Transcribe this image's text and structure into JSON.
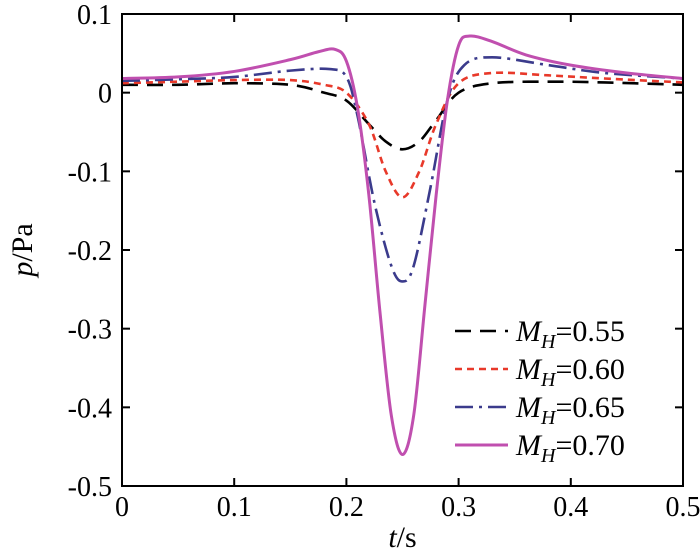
{
  "chart_data": {
    "type": "line",
    "xlabel": {
      "var": "t",
      "unit": "s"
    },
    "ylabel": {
      "var": "p",
      "unit": "Pa"
    },
    "xlim": [
      0,
      0.5
    ],
    "ylim": [
      -0.5,
      0.1
    ],
    "xticks": [
      0,
      0.1,
      0.2,
      0.3,
      0.4,
      0.5
    ],
    "xtick_labels": [
      "0",
      "0.1",
      "0.2",
      "0.3",
      "0.4",
      "0.5"
    ],
    "yticks": [
      0.1,
      0,
      -0.1,
      -0.2,
      -0.3,
      -0.4,
      -0.5
    ],
    "ytick_labels": [
      "0.1",
      "0",
      "-0.1",
      "-0.2",
      "-0.3",
      "-0.4",
      "-0.5"
    ],
    "grid": false,
    "legend_position": "bottom-right",
    "series": [
      {
        "name": "M_H=0.55",
        "label_main": "M",
        "label_sub": "H",
        "label_value": "=0.55",
        "color": "#000000",
        "style": "dashed",
        "x": [
          0,
          0.05,
          0.1,
          0.15,
          0.18,
          0.2,
          0.22,
          0.235,
          0.25,
          0.265,
          0.28,
          0.3,
          0.33,
          0.38,
          0.43,
          0.5
        ],
        "y": [
          0.01,
          0.01,
          0.012,
          0.01,
          0.0,
          -0.01,
          -0.04,
          -0.062,
          -0.072,
          -0.062,
          -0.035,
          0.0,
          0.012,
          0.014,
          0.013,
          0.01
        ]
      },
      {
        "name": "M_H=0.60",
        "label_main": "M",
        "label_sub": "H",
        "label_value": "=0.60",
        "color": "#e8392a",
        "style": "dotted",
        "x": [
          0,
          0.05,
          0.1,
          0.15,
          0.18,
          0.2,
          0.22,
          0.235,
          0.25,
          0.265,
          0.28,
          0.3,
          0.33,
          0.38,
          0.43,
          0.5
        ],
        "y": [
          0.012,
          0.014,
          0.016,
          0.016,
          0.01,
          0.0,
          -0.04,
          -0.1,
          -0.133,
          -0.1,
          -0.04,
          0.012,
          0.025,
          0.022,
          0.018,
          0.013
        ]
      },
      {
        "name": "M_H=0.65",
        "label_main": "M",
        "label_sub": "H",
        "label_value": "=0.65",
        "color": "#3b3b8c",
        "style": "dashdot",
        "x": [
          0,
          0.05,
          0.1,
          0.15,
          0.185,
          0.2,
          0.21,
          0.225,
          0.24,
          0.25,
          0.26,
          0.275,
          0.29,
          0.305,
          0.33,
          0.38,
          0.43,
          0.5
        ],
        "y": [
          0.015,
          0.017,
          0.02,
          0.028,
          0.03,
          0.02,
          -0.03,
          -0.14,
          -0.22,
          -0.24,
          -0.22,
          -0.12,
          -0.01,
          0.035,
          0.045,
          0.035,
          0.025,
          0.018
        ]
      },
      {
        "name": "M_H=0.70",
        "label_main": "M",
        "label_sub": "H",
        "label_value": "=0.70",
        "color": "#c04faf",
        "style": "solid",
        "x": [
          0,
          0.05,
          0.1,
          0.15,
          0.175,
          0.19,
          0.2,
          0.21,
          0.22,
          0.23,
          0.24,
          0.25,
          0.26,
          0.27,
          0.28,
          0.29,
          0.3,
          0.31,
          0.33,
          0.36,
          0.4,
          0.45,
          0.5
        ],
        "y": [
          0.018,
          0.02,
          0.027,
          0.042,
          0.052,
          0.055,
          0.04,
          -0.02,
          -0.13,
          -0.28,
          -0.41,
          -0.46,
          -0.41,
          -0.27,
          -0.13,
          -0.01,
          0.06,
          0.072,
          0.065,
          0.048,
          0.035,
          0.025,
          0.018
        ]
      }
    ]
  }
}
